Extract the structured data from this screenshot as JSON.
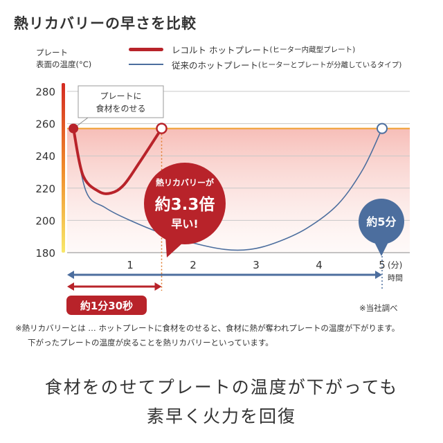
{
  "title": "熱リカバリーの早さを比較",
  "ylabel": [
    "プレート",
    "表面の温度(°C)"
  ],
  "legend": [
    {
      "name": "レコルト ホットプレート",
      "note": "(ヒーター内蔵型プレート)",
      "color": "#b8232a"
    },
    {
      "name": "従来のホットプレート",
      "note": "(ヒーターとプレートが分離しているタイプ)",
      "color": "#4c6e9e"
    }
  ],
  "callout_box": [
    "プレートに",
    "食材をのせる"
  ],
  "badge_red": [
    "熱リカバリーが",
    "約3.3倍",
    "早い!"
  ],
  "badge_blue": "約5分",
  "red_pill": "約1分30秒",
  "xunit": "(分)",
  "xunit_label": "時間",
  "source": "※当社調べ",
  "footnote": [
    "※熱リカバリーとは … ホットプレートに食材をのせると、食材に熱が奪われプレートの温度が下がります。",
    "下がったプレートの温度が戻ることを熱リカバリーといっています。"
  ],
  "slogan": [
    "食材をのせてプレートの温度が下がっても",
    "素早く火力を回復"
  ],
  "chart_data": {
    "type": "line",
    "xlim": [
      0,
      5
    ],
    "ylim": [
      180,
      280
    ],
    "xticks": [
      1,
      2,
      3,
      4,
      5
    ],
    "yticks": [
      180,
      200,
      220,
      240,
      260,
      280
    ],
    "reference_y": 257,
    "series": [
      {
        "name": "レコルト ホットプレート",
        "color": "#b8232a",
        "x": [
          0.1,
          0.25,
          0.5,
          0.7,
          0.9,
          1.15,
          1.5
        ],
        "y": [
          257,
          228,
          218,
          217,
          222,
          236,
          257
        ]
      },
      {
        "name": "従来のホットプレート",
        "color": "#4c6e9e",
        "x": [
          0.1,
          0.3,
          0.6,
          1.0,
          1.5,
          2.0,
          2.5,
          2.9,
          3.3,
          3.8,
          4.3,
          4.7,
          5.0
        ],
        "y": [
          257,
          218,
          208,
          200,
          192,
          186,
          182,
          182,
          186,
          195,
          210,
          232,
          257
        ]
      }
    ]
  }
}
